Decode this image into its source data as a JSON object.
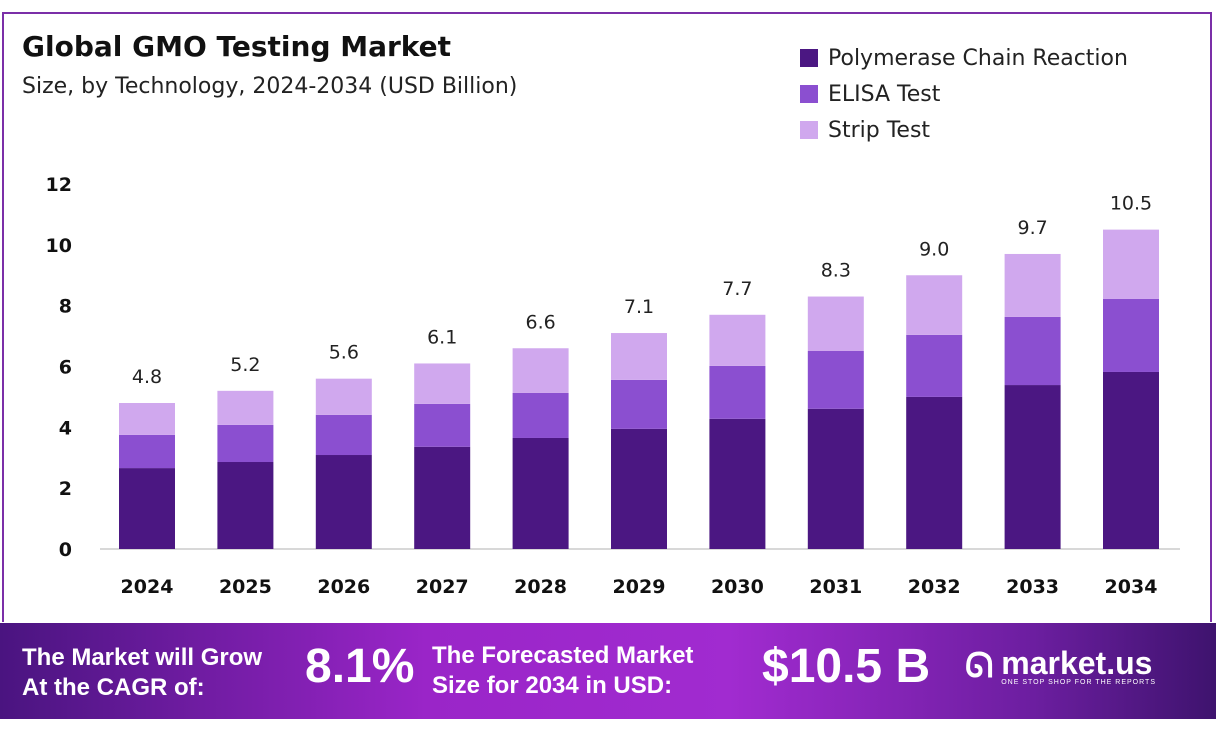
{
  "chart_data": {
    "type": "bar",
    "stacked": true,
    "title": "Global GMO Testing Market",
    "subtitle": "Size, by Technology, 2024-2034 (USD Billion)",
    "categories": [
      "2024",
      "2025",
      "2026",
      "2027",
      "2028",
      "2029",
      "2030",
      "2031",
      "2032",
      "2033",
      "2034"
    ],
    "series": [
      {
        "name": "Polymerase Chain Reaction",
        "color": "#4b1782",
        "values": [
          2.66,
          2.86,
          3.09,
          3.36,
          3.65,
          3.95,
          4.28,
          4.61,
          5.0,
          5.39,
          5.82
        ]
      },
      {
        "name": "ELISA Test",
        "color": "#8b4fd0",
        "values": [
          1.09,
          1.22,
          1.32,
          1.41,
          1.48,
          1.61,
          1.74,
          1.9,
          2.04,
          2.24,
          2.4
        ]
      },
      {
        "name": "Strip Test",
        "color": "#d0a8ee",
        "values": [
          1.05,
          1.12,
          1.19,
          1.33,
          1.47,
          1.54,
          1.68,
          1.79,
          1.96,
          2.07,
          2.28
        ]
      }
    ],
    "totals": [
      "4.8",
      "5.2",
      "5.6",
      "6.1",
      "6.6",
      "7.1",
      "7.7",
      "8.3",
      "9.0",
      "9.7",
      "10.5"
    ],
    "yticks": [
      "0",
      "2",
      "4",
      "6",
      "8",
      "10",
      "12"
    ],
    "ylim": [
      0,
      12
    ],
    "grid": false,
    "legend": "top-right"
  },
  "banner": {
    "cagr_label_1": "The Market will Grow",
    "cagr_label_2": "At the CAGR of:",
    "cagr_value": "8.1%",
    "forecast_label_1": "The Forecasted Market",
    "forecast_label_2": "Size for 2034 in USD:",
    "forecast_value": "$10.5 B",
    "logo_name": "market.us",
    "logo_tagline": "ONE STOP SHOP FOR THE REPORTS"
  }
}
